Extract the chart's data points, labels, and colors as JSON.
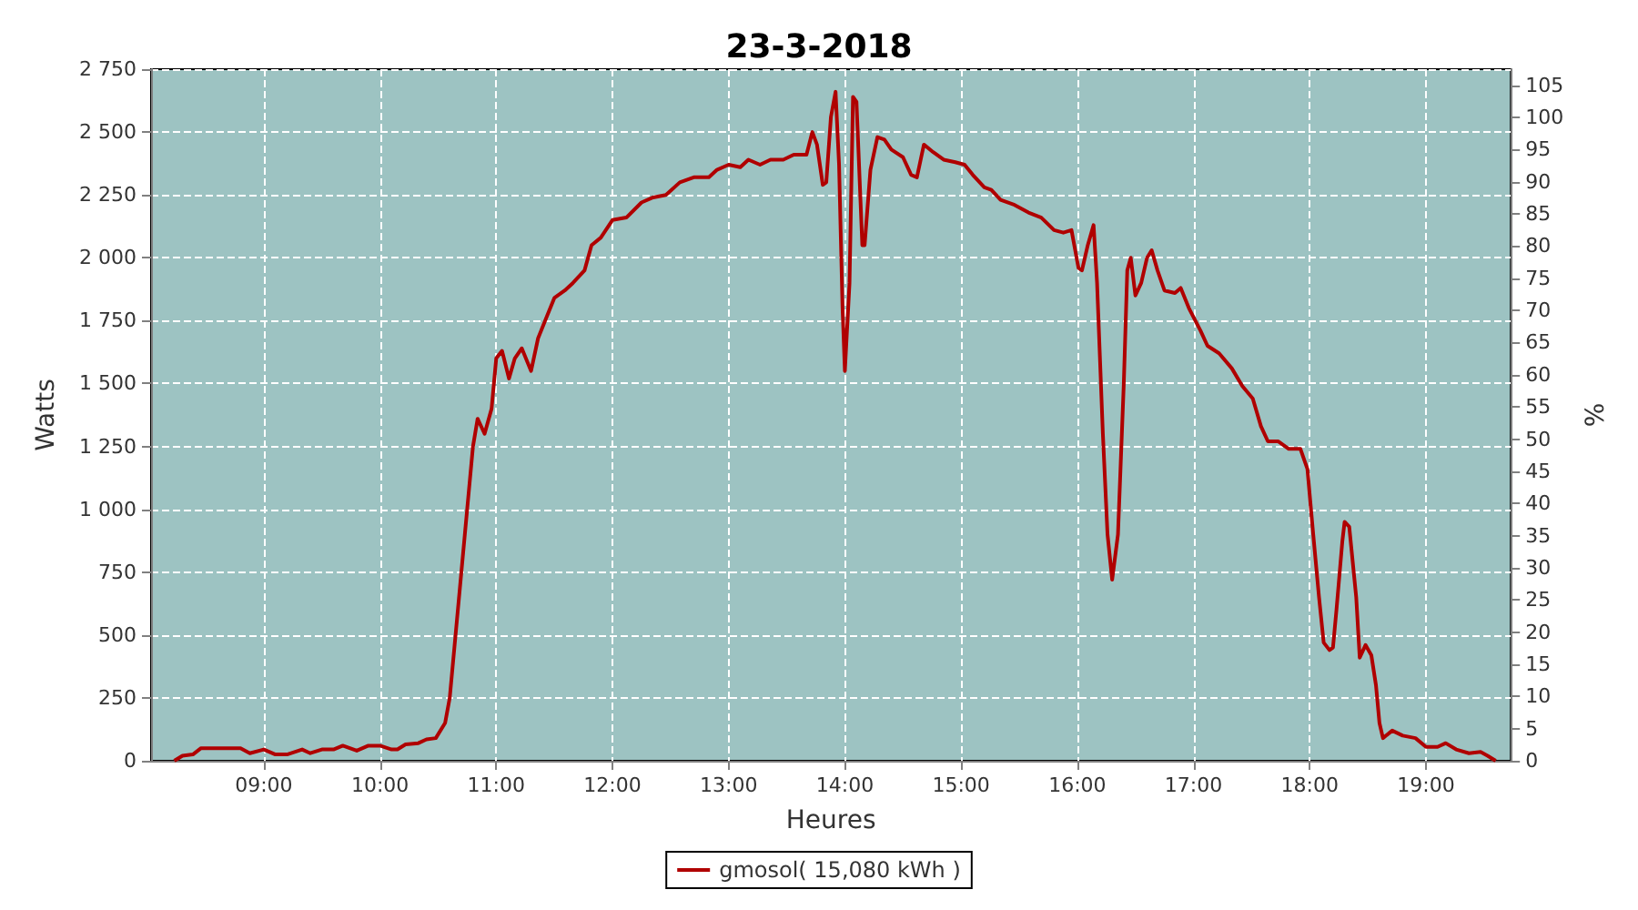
{
  "chart_data": {
    "type": "line",
    "title": "23-3-2018",
    "xlabel": "Heures",
    "ylabel": "Watts",
    "y2label": "%",
    "xlim": [
      8.03,
      19.73
    ],
    "xticks": [
      {
        "value": 9,
        "label": "09:00"
      },
      {
        "value": 10,
        "label": "10:00"
      },
      {
        "value": 11,
        "label": "11:00"
      },
      {
        "value": 12,
        "label": "12:00"
      },
      {
        "value": 13,
        "label": "13:00"
      },
      {
        "value": 14,
        "label": "14:00"
      },
      {
        "value": 15,
        "label": "15:00"
      },
      {
        "value": 16,
        "label": "16:00"
      },
      {
        "value": 17,
        "label": "17:00"
      },
      {
        "value": 18,
        "label": "18:00"
      },
      {
        "value": 19,
        "label": "19:00"
      }
    ],
    "ylim": [
      0,
      2750
    ],
    "yticks": [
      0,
      250,
      500,
      750,
      {
        "value": 1000,
        "label": "1 000"
      },
      {
        "value": 1250,
        "label": "1 250"
      },
      {
        "value": 1500,
        "label": "1 500"
      },
      {
        "value": 1750,
        "label": "1 750"
      },
      {
        "value": 2000,
        "label": "2 000"
      },
      {
        "value": 2250,
        "label": "2 250"
      },
      {
        "value": 2500,
        "label": "2 500"
      },
      {
        "value": 2750,
        "label": "2 750"
      }
    ],
    "y2lim": [
      0,
      107.5
    ],
    "y2ticks": [
      0,
      5,
      10,
      15,
      20,
      25,
      30,
      35,
      40,
      45,
      50,
      55,
      60,
      65,
      70,
      75,
      80,
      85,
      90,
      95,
      100,
      105
    ],
    "grid": true,
    "legend": "bottom",
    "marker": "none",
    "line_style": "solid",
    "series": [
      {
        "name": "gmosol( 15,080 kWh )",
        "color": "#b00000",
        "x": [
          8.23,
          8.3,
          8.39,
          8.46,
          8.8,
          8.88,
          9.0,
          9.1,
          9.2,
          9.33,
          9.4,
          9.5,
          9.6,
          9.68,
          9.8,
          9.9,
          10.0,
          10.1,
          10.15,
          10.22,
          10.33,
          10.4,
          10.48,
          10.56,
          10.6,
          10.65,
          10.7,
          10.75,
          10.8,
          10.84,
          10.9,
          10.96,
          11.0,
          11.05,
          11.11,
          11.16,
          11.22,
          11.3,
          11.36,
          11.43,
          11.5,
          11.59,
          11.66,
          11.76,
          11.82,
          11.9,
          12.0,
          12.12,
          12.25,
          12.35,
          12.46,
          12.58,
          12.7,
          12.83,
          12.9,
          13.0,
          13.1,
          13.17,
          13.27,
          13.36,
          13.47,
          13.56,
          13.67,
          13.72,
          13.76,
          13.81,
          13.84,
          13.88,
          13.92,
          13.95,
          13.98,
          14.0,
          14.04,
          14.07,
          14.1,
          14.15,
          14.17,
          14.22,
          14.28,
          14.34,
          14.4,
          14.5,
          14.57,
          14.62,
          14.68,
          14.76,
          14.85,
          14.95,
          15.03,
          15.1,
          15.2,
          15.26,
          15.34,
          15.46,
          15.58,
          15.69,
          15.8,
          15.88,
          15.95,
          16.01,
          16.04,
          16.09,
          16.14,
          16.17,
          16.22,
          16.26,
          16.3,
          16.35,
          16.4,
          16.43,
          16.46,
          16.5,
          16.55,
          16.6,
          16.64,
          16.69,
          16.75,
          16.84,
          16.89,
          16.96,
          17.06,
          17.12,
          17.22,
          17.33,
          17.42,
          17.51,
          17.58,
          17.64,
          17.73,
          17.82,
          17.92,
          17.98,
          18.03,
          18.08,
          18.12,
          18.17,
          18.2,
          18.23,
          18.28,
          18.3,
          18.34,
          18.4,
          18.43,
          18.48,
          18.53,
          18.57,
          18.6,
          18.63,
          18.71,
          18.8,
          18.91,
          19.0,
          19.1,
          19.17,
          19.26,
          19.37,
          19.47,
          19.53,
          19.6
        ],
        "values": [
          0,
          20,
          25,
          50,
          50,
          30,
          45,
          25,
          25,
          45,
          30,
          45,
          45,
          60,
          40,
          60,
          60,
          45,
          45,
          65,
          70,
          85,
          90,
          150,
          250,
          500,
          750,
          1000,
          1250,
          1360,
          1300,
          1400,
          1600,
          1630,
          1520,
          1600,
          1640,
          1550,
          1680,
          1760,
          1840,
          1870,
          1900,
          1950,
          2050,
          2080,
          2150,
          2160,
          2220,
          2240,
          2250,
          2300,
          2320,
          2320,
          2350,
          2370,
          2360,
          2390,
          2370,
          2390,
          2390,
          2410,
          2410,
          2500,
          2450,
          2290,
          2300,
          2560,
          2660,
          2370,
          1800,
          1550,
          1900,
          2640,
          2620,
          2050,
          2050,
          2350,
          2480,
          2470,
          2430,
          2400,
          2330,
          2320,
          2450,
          2420,
          2390,
          2380,
          2370,
          2330,
          2280,
          2270,
          2230,
          2210,
          2180,
          2160,
          2110,
          2100,
          2110,
          1960,
          1950,
          2050,
          2130,
          1900,
          1300,
          900,
          720,
          900,
          1500,
          1950,
          2000,
          1850,
          1900,
          2000,
          2030,
          1950,
          1870,
          1860,
          1880,
          1800,
          1710,
          1650,
          1620,
          1560,
          1490,
          1440,
          1330,
          1270,
          1270,
          1240,
          1240,
          1160,
          900,
          650,
          470,
          440,
          450,
          600,
          870,
          950,
          930,
          650,
          410,
          460,
          420,
          300,
          150,
          90,
          120,
          100,
          90,
          55,
          55,
          70,
          45,
          30,
          35,
          20,
          0
        ]
      }
    ]
  }
}
